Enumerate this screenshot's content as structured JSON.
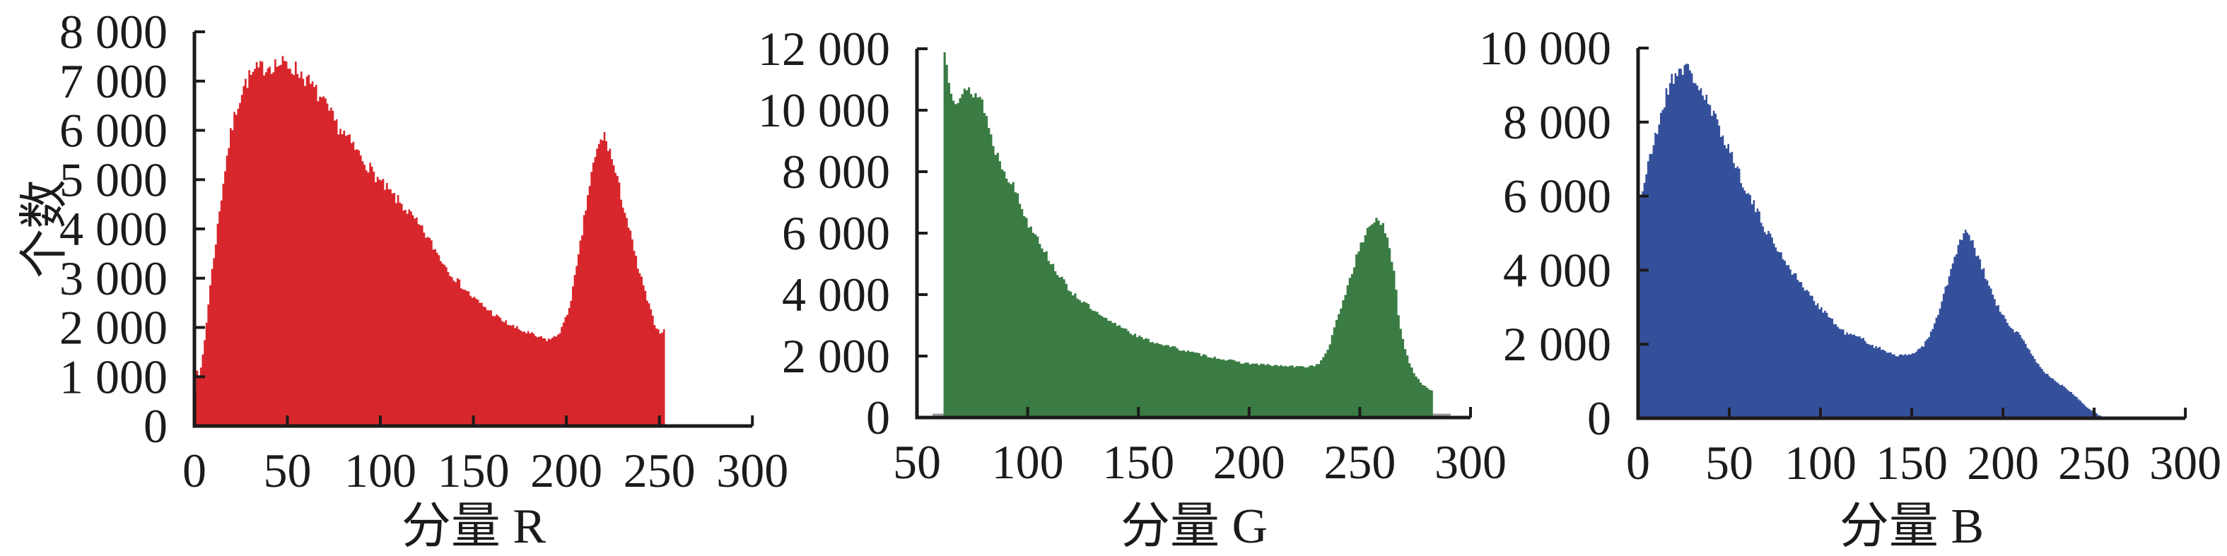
{
  "figure": {
    "background": "#ffffff",
    "description_labels": {
      "count_axis": "个数"
    }
  },
  "chart_data": [
    {
      "type": "bar",
      "subtype": "histogram-area",
      "series_name": "R",
      "xlabel": "分量 R",
      "ylabel": "个数",
      "fill_color": "#d8272c",
      "axis_color": "#1d1a1a",
      "xlim": [
        0,
        300
      ],
      "ylim": [
        0,
        8000
      ],
      "x_ticks": [
        0,
        50,
        100,
        150,
        200,
        250,
        300
      ],
      "x_tick_labels": [
        "0",
        "50",
        "100",
        "150",
        "200",
        "250",
        "300"
      ],
      "y_ticks": [
        0,
        1000,
        2000,
        3000,
        4000,
        5000,
        6000,
        7000,
        8000
      ],
      "y_tick_labels": [
        "0",
        "1 000",
        "2 000",
        "3 000",
        "4 000",
        "5 000",
        "6 000",
        "7 000",
        "8 000"
      ],
      "grid": false,
      "legend": "none",
      "data_x_range": [
        0,
        253
      ],
      "peaks": [
        {
          "x": 46,
          "count": 7340
        },
        {
          "x": 220,
          "count": 5900
        }
      ],
      "valley": {
        "x": 190,
        "count": 1750
      },
      "noise_seed": 7,
      "noise_frac": 0.026,
      "envelope": [
        [
          0,
          80
        ],
        [
          1,
          1350
        ],
        [
          2,
          950
        ],
        [
          3,
          1050
        ],
        [
          4,
          1300
        ],
        [
          6,
          1900
        ],
        [
          8,
          2700
        ],
        [
          10,
          3300
        ],
        [
          12,
          3900
        ],
        [
          14,
          4500
        ],
        [
          16,
          5100
        ],
        [
          18,
          5600
        ],
        [
          20,
          6000
        ],
        [
          23,
          6500
        ],
        [
          26,
          6850
        ],
        [
          29,
          7050
        ],
        [
          33,
          7200
        ],
        [
          38,
          7300
        ],
        [
          43,
          7340
        ],
        [
          48,
          7340
        ],
        [
          52,
          7300
        ],
        [
          56,
          7200
        ],
        [
          60,
          7050
        ],
        [
          64,
          6850
        ],
        [
          68,
          6650
        ],
        [
          72,
          6400
        ],
        [
          76,
          6150
        ],
        [
          80,
          5950
        ],
        [
          85,
          5700
        ],
        [
          90,
          5450
        ],
        [
          95,
          5200
        ],
        [
          100,
          4950
        ],
        [
          105,
          4750
        ],
        [
          110,
          4550
        ],
        [
          115,
          4350
        ],
        [
          120,
          4100
        ],
        [
          125,
          3850
        ],
        [
          130,
          3550
        ],
        [
          135,
          3250
        ],
        [
          140,
          3000
        ],
        [
          145,
          2800
        ],
        [
          150,
          2600
        ],
        [
          155,
          2450
        ],
        [
          160,
          2300
        ],
        [
          165,
          2150
        ],
        [
          170,
          2050
        ],
        [
          175,
          1950
        ],
        [
          180,
          1880
        ],
        [
          185,
          1800
        ],
        [
          190,
          1750
        ],
        [
          194,
          1800
        ],
        [
          197,
          1950
        ],
        [
          200,
          2200
        ],
        [
          202,
          2500
        ],
        [
          204,
          2900
        ],
        [
          206,
          3300
        ],
        [
          208,
          3800
        ],
        [
          210,
          4300
        ],
        [
          212,
          4800
        ],
        [
          214,
          5200
        ],
        [
          216,
          5500
        ],
        [
          218,
          5750
        ],
        [
          220,
          5900
        ],
        [
          222,
          5750
        ],
        [
          224,
          5500
        ],
        [
          226,
          5200
        ],
        [
          228,
          4900
        ],
        [
          230,
          4600
        ],
        [
          232,
          4300
        ],
        [
          235,
          3800
        ],
        [
          238,
          3300
        ],
        [
          241,
          2900
        ],
        [
          244,
          2500
        ],
        [
          246,
          2250
        ],
        [
          248,
          2050
        ],
        [
          250,
          1900
        ],
        [
          252,
          1950
        ],
        [
          253,
          1900
        ]
      ]
    },
    {
      "type": "bar",
      "subtype": "histogram-area",
      "series_name": "G",
      "xlabel": "分量 G",
      "ylabel": "",
      "fill_color": "#3a7c44",
      "axis_color": "#1d1a1a",
      "xlim": [
        50,
        300
      ],
      "ylim": [
        0,
        12000
      ],
      "x_ticks": [
        50,
        100,
        150,
        200,
        250,
        300
      ],
      "x_tick_labels": [
        "50",
        "100",
        "150",
        "200",
        "250",
        "300"
      ],
      "y_ticks": [
        0,
        2000,
        4000,
        6000,
        8000,
        10000,
        12000
      ],
      "y_tick_labels": [
        "0",
        "2 000",
        "4 000",
        "6 000",
        "8 000",
        "10 000",
        "12 000"
      ],
      "grid": false,
      "legend": "none",
      "data_x_range": [
        62,
        283
      ],
      "peaks": [
        {
          "x": 63,
          "count": 11900
        },
        {
          "x": 74,
          "count": 10650
        },
        {
          "x": 258,
          "count": 6500
        }
      ],
      "valley": {
        "x": 225,
        "count": 1650
      },
      "baseline_underline": {
        "x_start": 57,
        "x_end": 291,
        "color": "#9b9b9b",
        "width": 3
      },
      "noise_seed": 13,
      "noise_frac": 0.022,
      "envelope": [
        [
          62,
          11900
        ],
        [
          63,
          11800
        ],
        [
          64,
          11300
        ],
        [
          65,
          10900
        ],
        [
          66,
          10600
        ],
        [
          67,
          10450
        ],
        [
          68,
          10400
        ],
        [
          70,
          10480
        ],
        [
          72,
          10550
        ],
        [
          74,
          10650
        ],
        [
          76,
          10550
        ],
        [
          78,
          10450
        ],
        [
          80,
          10250
        ],
        [
          81,
          9900
        ],
        [
          83,
          9300
        ],
        [
          84,
          9000
        ],
        [
          86,
          8600
        ],
        [
          88,
          8300
        ],
        [
          90,
          8000
        ],
        [
          93,
          7600
        ],
        [
          96,
          7150
        ],
        [
          99,
          6500
        ],
        [
          101,
          6250
        ],
        [
          104,
          6000
        ],
        [
          107,
          5500
        ],
        [
          111,
          5000
        ],
        [
          115,
          4550
        ],
        [
          119,
          4150
        ],
        [
          123,
          3900
        ],
        [
          127,
          3650
        ],
        [
          131,
          3400
        ],
        [
          135,
          3200
        ],
        [
          139,
          3050
        ],
        [
          143,
          2950
        ],
        [
          147,
          2750
        ],
        [
          151,
          2600
        ],
        [
          155,
          2500
        ],
        [
          160,
          2400
        ],
        [
          165,
          2300
        ],
        [
          170,
          2200
        ],
        [
          175,
          2100
        ],
        [
          180,
          2020
        ],
        [
          185,
          1950
        ],
        [
          190,
          1880
        ],
        [
          195,
          1800
        ],
        [
          200,
          1760
        ],
        [
          205,
          1730
        ],
        [
          210,
          1700
        ],
        [
          215,
          1680
        ],
        [
          220,
          1660
        ],
        [
          225,
          1650
        ],
        [
          230,
          1700
        ],
        [
          233,
          1860
        ],
        [
          236,
          2300
        ],
        [
          239,
          3000
        ],
        [
          242,
          3700
        ],
        [
          245,
          4400
        ],
        [
          248,
          5100
        ],
        [
          251,
          5700
        ],
        [
          254,
          6200
        ],
        [
          256,
          6400
        ],
        [
          258,
          6500
        ],
        [
          260,
          6300
        ],
        [
          262,
          5900
        ],
        [
          264,
          5300
        ],
        [
          266,
          4500
        ],
        [
          267,
          3700
        ],
        [
          268,
          3100
        ],
        [
          269,
          2700
        ],
        [
          270,
          2400
        ],
        [
          271,
          2100
        ],
        [
          272,
          1900
        ],
        [
          273,
          1700
        ],
        [
          274,
          1550
        ],
        [
          275,
          1400
        ],
        [
          276,
          1300
        ],
        [
          277,
          1200
        ],
        [
          278,
          1100
        ],
        [
          279,
          1050
        ],
        [
          280,
          1000
        ],
        [
          281,
          950
        ],
        [
          282,
          900
        ],
        [
          283,
          870
        ]
      ]
    },
    {
      "type": "bar",
      "subtype": "histogram-area",
      "series_name": "B",
      "xlabel": "分量 B",
      "ylabel": "",
      "fill_color": "#35509b",
      "axis_color": "#1d1a1a",
      "xlim": [
        0,
        300
      ],
      "ylim": [
        0,
        10000
      ],
      "x_ticks": [
        0,
        50,
        100,
        150,
        200,
        250,
        300
      ],
      "x_tick_labels": [
        "0",
        "50",
        "100",
        "150",
        "200",
        "250",
        "300"
      ],
      "y_ticks": [
        0,
        2000,
        4000,
        6000,
        8000,
        10000
      ],
      "y_tick_labels": [
        "0",
        "2 000",
        "4 000",
        "6 000",
        "8 000",
        "10 000"
      ],
      "grid": false,
      "legend": "none",
      "data_x_range": [
        0,
        255
      ],
      "peaks": [
        {
          "x": 25,
          "count": 9480
        },
        {
          "x": 179,
          "count": 5000
        }
      ],
      "valley": {
        "x": 144,
        "count": 1680
      },
      "noise_seed": 21,
      "noise_frac": 0.026,
      "envelope": [
        [
          0,
          5800
        ],
        [
          2,
          6100
        ],
        [
          4,
          6500
        ],
        [
          6,
          6900
        ],
        [
          8,
          7300
        ],
        [
          10,
          7700
        ],
        [
          12,
          8100
        ],
        [
          14,
          8500
        ],
        [
          16,
          8800
        ],
        [
          18,
          9100
        ],
        [
          20,
          9300
        ],
        [
          22,
          9400
        ],
        [
          24,
          9480
        ],
        [
          26,
          9450
        ],
        [
          28,
          9350
        ],
        [
          30,
          9250
        ],
        [
          33,
          9000
        ],
        [
          36,
          8700
        ],
        [
          39,
          8400
        ],
        [
          42,
          8100
        ],
        [
          45,
          7800
        ],
        [
          48,
          7500
        ],
        [
          51,
          7150
        ],
        [
          54,
          6800
        ],
        [
          57,
          6450
        ],
        [
          60,
          6100
        ],
        [
          63,
          5800
        ],
        [
          66,
          5500
        ],
        [
          69,
          5200
        ],
        [
          72,
          4950
        ],
        [
          75,
          4700
        ],
        [
          78,
          4450
        ],
        [
          81,
          4250
        ],
        [
          84,
          4000
        ],
        [
          87,
          3800
        ],
        [
          90,
          3600
        ],
        [
          93,
          3400
        ],
        [
          96,
          3200
        ],
        [
          100,
          3000
        ],
        [
          104,
          2800
        ],
        [
          108,
          2550
        ],
        [
          111,
          2400
        ],
        [
          114,
          2300
        ],
        [
          117,
          2250
        ],
        [
          120,
          2200
        ],
        [
          123,
          2150
        ],
        [
          126,
          2050
        ],
        [
          129,
          1950
        ],
        [
          132,
          1900
        ],
        [
          135,
          1830
        ],
        [
          138,
          1780
        ],
        [
          141,
          1720
        ],
        [
          144,
          1680
        ],
        [
          147,
          1700
        ],
        [
          150,
          1750
        ],
        [
          153,
          1830
        ],
        [
          156,
          1950
        ],
        [
          159,
          2150
        ],
        [
          162,
          2450
        ],
        [
          165,
          2900
        ],
        [
          168,
          3400
        ],
        [
          171,
          3900
        ],
        [
          174,
          4400
        ],
        [
          176,
          4700
        ],
        [
          178,
          4950
        ],
        [
          180,
          5000
        ],
        [
          182,
          4850
        ],
        [
          184,
          4650
        ],
        [
          186,
          4400
        ],
        [
          188,
          4150
        ],
        [
          190,
          3900
        ],
        [
          193,
          3500
        ],
        [
          196,
          3150
        ],
        [
          199,
          2850
        ],
        [
          202,
          2600
        ],
        [
          205,
          2400
        ],
        [
          208,
          2330
        ],
        [
          211,
          2100
        ],
        [
          214,
          1900
        ],
        [
          217,
          1650
        ],
        [
          220,
          1400
        ],
        [
          223,
          1250
        ],
        [
          226,
          1100
        ],
        [
          229,
          1000
        ],
        [
          232,
          900
        ],
        [
          235,
          800
        ],
        [
          238,
          700
        ],
        [
          241,
          550
        ],
        [
          244,
          400
        ],
        [
          247,
          280
        ],
        [
          250,
          180
        ],
        [
          252,
          100
        ],
        [
          254,
          40
        ],
        [
          255,
          10
        ]
      ]
    }
  ]
}
